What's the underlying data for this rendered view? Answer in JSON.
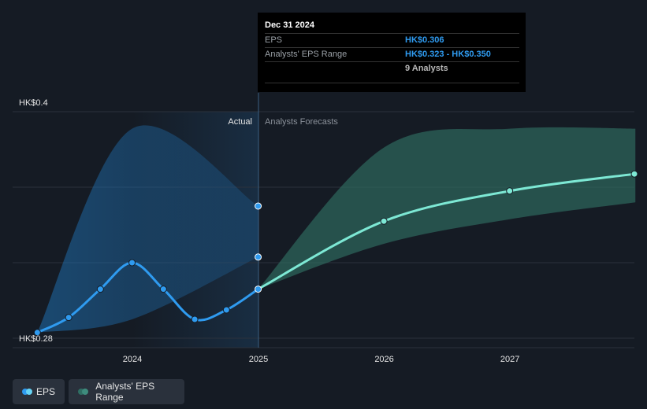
{
  "chart_data": {
    "type": "line",
    "title": "",
    "xlabel": "",
    "ylabel": "",
    "x_ticks": [
      "2024",
      "2025",
      "2026",
      "2027"
    ],
    "y_labels": [
      "HK$0.4",
      "HK$0.28"
    ],
    "ylim": [
      0.28,
      0.4
    ],
    "divider_labels": {
      "actual": "Actual",
      "forecast": "Analysts Forecasts"
    },
    "series": [
      {
        "name": "EPS",
        "color": "#2f9bf0",
        "points": [
          {
            "x": "2023-03-31",
            "y": 0.283
          },
          {
            "x": "2023-06-30",
            "y": 0.291
          },
          {
            "x": "2023-09-30",
            "y": 0.306
          },
          {
            "x": "2023-12-31",
            "y": 0.32
          },
          {
            "x": "2024-03-31",
            "y": 0.306
          },
          {
            "x": "2024-06-30",
            "y": 0.29
          },
          {
            "x": "2024-09-30",
            "y": 0.295
          },
          {
            "x": "2024-12-31",
            "y": 0.306
          }
        ]
      },
      {
        "name": "EPS forecast",
        "color": "#7de8d4",
        "points": [
          {
            "x": "2024-12-31",
            "y": 0.306
          },
          {
            "x": "2025-12-31",
            "y": 0.342
          },
          {
            "x": "2026-12-31",
            "y": 0.358
          },
          {
            "x": "2027-12-31",
            "y": 0.367
          }
        ]
      }
    ],
    "ranges": [
      {
        "name": "Analysts' EPS Range (past)",
        "color": "#1f6fb0",
        "x": [
          "2023-03-31",
          "2023-12-31",
          "2024-12-31"
        ],
        "low": [
          0.283,
          0.29,
          0.323
        ],
        "high": [
          0.283,
          0.391,
          0.35
        ]
      },
      {
        "name": "Analysts' EPS Range",
        "color": "#2f6e63",
        "x": [
          "2024-12-31",
          "2025-12-31",
          "2026-12-31",
          "2027-12-31"
        ],
        "low": [
          0.306,
          0.33,
          0.343,
          0.352
        ],
        "high": [
          0.306,
          0.381,
          0.391,
          0.391
        ]
      }
    ],
    "legend": {
      "placement": "bottom-left",
      "items": [
        {
          "label": "EPS",
          "colors": [
            "#2f9bf0",
            "#67d4f5"
          ]
        },
        {
          "label": "Analysts' EPS Range",
          "colors": [
            "#2f6e63",
            "#3e8c7d"
          ]
        }
      ]
    },
    "tooltip": {
      "date": "Dec 31 2024",
      "rows": [
        {
          "label": "EPS",
          "value": "HK$0.306"
        },
        {
          "label": "Analysts' EPS Range",
          "value": "HK$0.323 - HK$0.350"
        },
        {
          "label": "",
          "value": "9 Analysts"
        }
      ]
    }
  }
}
